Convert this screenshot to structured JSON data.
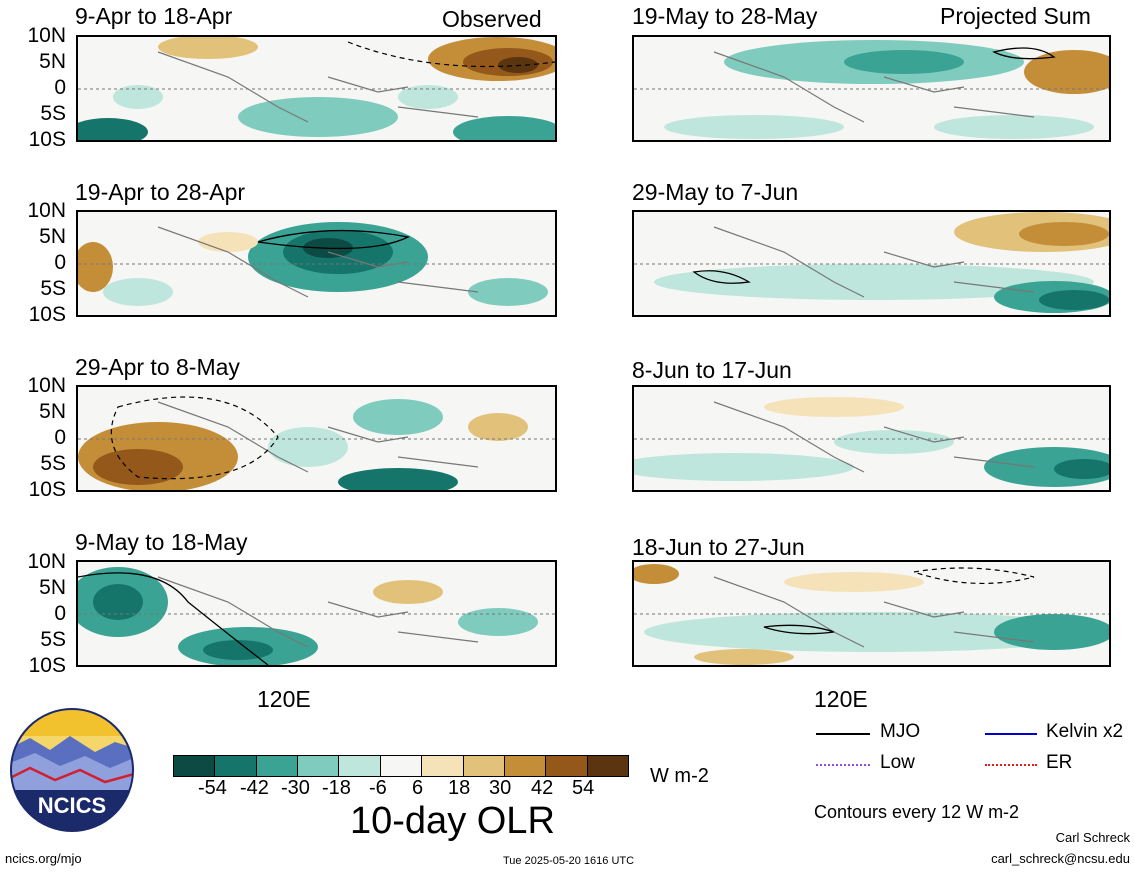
{
  "header": {
    "left_label": "Observed",
    "right_label": "Projected Sum"
  },
  "panels_left": [
    {
      "title": "9-Apr to 18-Apr"
    },
    {
      "title": "19-Apr to 28-Apr"
    },
    {
      "title": "29-Apr to 8-May"
    },
    {
      "title": "9-May to 18-May"
    }
  ],
  "panels_right": [
    {
      "title": "19-May to 28-May"
    },
    {
      "title": "29-May to 7-Jun"
    },
    {
      "title": "8-Jun to 17-Jun"
    },
    {
      "title": "18-Jun to 27-Jun"
    }
  ],
  "lat_labels": [
    "10N",
    "5N",
    "0",
    "5S",
    "10S"
  ],
  "lon_label": "120E",
  "colorbar": {
    "ticks": [
      "-54",
      "-42",
      "-30",
      "-18",
      "-6",
      "6",
      "18",
      "30",
      "42",
      "54"
    ],
    "colors": [
      "#0d4a44",
      "#16756b",
      "#3aa394",
      "#7fcbbd",
      "#bfe6dc",
      "#f6f6f4",
      "#f5e2b8",
      "#e2c27a",
      "#c48d38",
      "#94581b",
      "#5a3510"
    ],
    "units": "W m-2",
    "title": "10-day OLR"
  },
  "legend": {
    "items": [
      {
        "label": "MJO",
        "color": "#000000"
      },
      {
        "label": "Kelvin x2",
        "color": "#0000cc"
      },
      {
        "label": "Low",
        "color": "#9a4fd8"
      },
      {
        "label": "ER",
        "color": "#e02020"
      }
    ],
    "note": "Contours every 12 W m-2"
  },
  "logo": {
    "text": "NCICS"
  },
  "footer": {
    "url": "ncics.org/mjo",
    "timestamp": "Tue 2025-05-20 1616 UTC",
    "author": "Carl Schreck",
    "email": "carl_schreck@ncsu.edu"
  }
}
